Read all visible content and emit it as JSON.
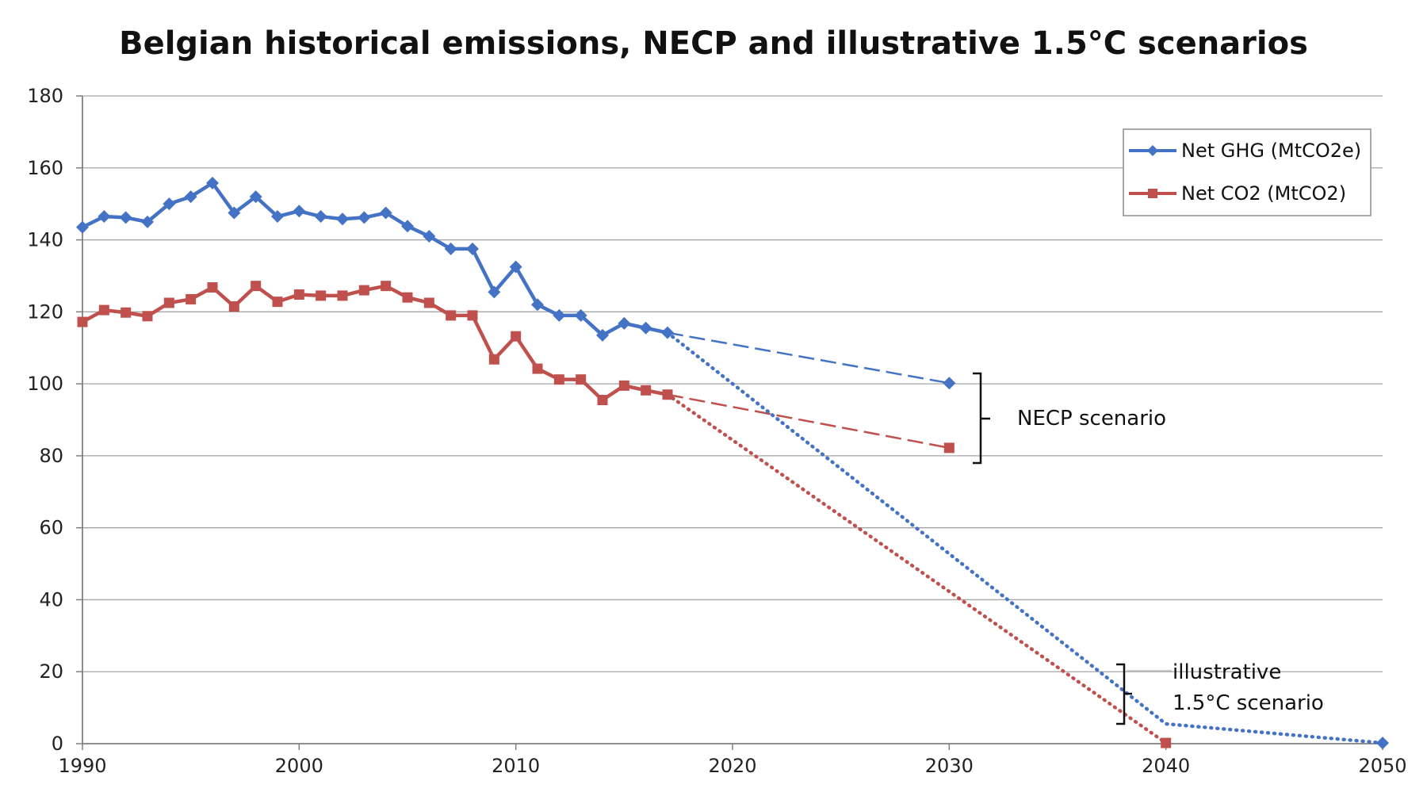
{
  "chart_data": {
    "type": "line",
    "title": "Belgian historical emissions, NECP and illustrative 1.5°C scenarios",
    "xlabel": "",
    "ylabel": "",
    "xlim": [
      1990,
      2050
    ],
    "ylim": [
      0,
      180
    ],
    "x_ticks": [
      1990,
      2000,
      2010,
      2020,
      2030,
      2040,
      2050
    ],
    "y_ticks": [
      0,
      20,
      40,
      60,
      80,
      100,
      120,
      140,
      160,
      180
    ],
    "grid": true,
    "legend_position": "top-right",
    "colors": {
      "ghg": "#4472c4",
      "co2": "#c0504d",
      "grid": "#a6a6a6",
      "axis": "#7f7f7f"
    },
    "series": [
      {
        "name": "Net GHG (MtCO2e)",
        "key": "ghg",
        "marker": "diamond",
        "x": [
          1990,
          1991,
          1992,
          1993,
          1994,
          1995,
          1996,
          1997,
          1998,
          1999,
          2000,
          2001,
          2002,
          2003,
          2004,
          2005,
          2006,
          2007,
          2008,
          2009,
          2010,
          2011,
          2012,
          2013,
          2014,
          2015,
          2016,
          2017
        ],
        "values": [
          143.5,
          146.5,
          146.2,
          145,
          150,
          152,
          155.8,
          147.5,
          152,
          146.5,
          148,
          146.5,
          145.8,
          146.2,
          147.5,
          143.8,
          141,
          137.5,
          137.5,
          125.5,
          132.5,
          122,
          119,
          119,
          113.5,
          116.8,
          115.5,
          114.2
        ]
      },
      {
        "name": "Net CO2 (MtCO2)",
        "key": "co2",
        "marker": "square",
        "x": [
          1990,
          1991,
          1992,
          1993,
          1994,
          1995,
          1996,
          1997,
          1998,
          1999,
          2000,
          2001,
          2002,
          2003,
          2004,
          2005,
          2006,
          2007,
          2008,
          2009,
          2010,
          2011,
          2012,
          2013,
          2014,
          2015,
          2016,
          2017
        ],
        "values": [
          117.2,
          120.5,
          119.8,
          118.8,
          122.5,
          123.5,
          126.8,
          121.5,
          127.2,
          122.8,
          124.8,
          124.5,
          124.5,
          126,
          127.2,
          124,
          122.5,
          119,
          119,
          106.8,
          113.2,
          104.2,
          101.2,
          101.2,
          95.5,
          99.5,
          98.2,
          97
        ]
      }
    ],
    "scenarios": [
      {
        "series": "ghg",
        "name": "NECP scenario",
        "style": "dashed",
        "x": [
          2017,
          2030
        ],
        "values": [
          114.2,
          100.2
        ]
      },
      {
        "series": "co2",
        "name": "NECP scenario",
        "style": "dashed",
        "x": [
          2017,
          2030
        ],
        "values": [
          97,
          82.2
        ]
      },
      {
        "series": "ghg",
        "name": "illustrative 1.5°C scenario",
        "style": "dotted",
        "x": [
          2017,
          2040,
          2050
        ],
        "values": [
          114.2,
          5.5,
          0.2
        ],
        "markers_at": [
          2050
        ]
      },
      {
        "series": "co2",
        "name": "illustrative 1.5°C scenario",
        "style": "dotted",
        "x": [
          2017,
          2040
        ],
        "values": [
          97,
          0.2
        ],
        "markers_at": [
          2040
        ]
      }
    ],
    "scenario_end_markers": [
      {
        "series": "ghg",
        "x": 2030,
        "value": 100.2
      },
      {
        "series": "co2",
        "x": 2030,
        "value": 82.2
      }
    ],
    "annotations": {
      "necp": "NECP scenario",
      "illustrative_line1": "illustrative",
      "illustrative_line2": "1.5°C scenario"
    }
  }
}
